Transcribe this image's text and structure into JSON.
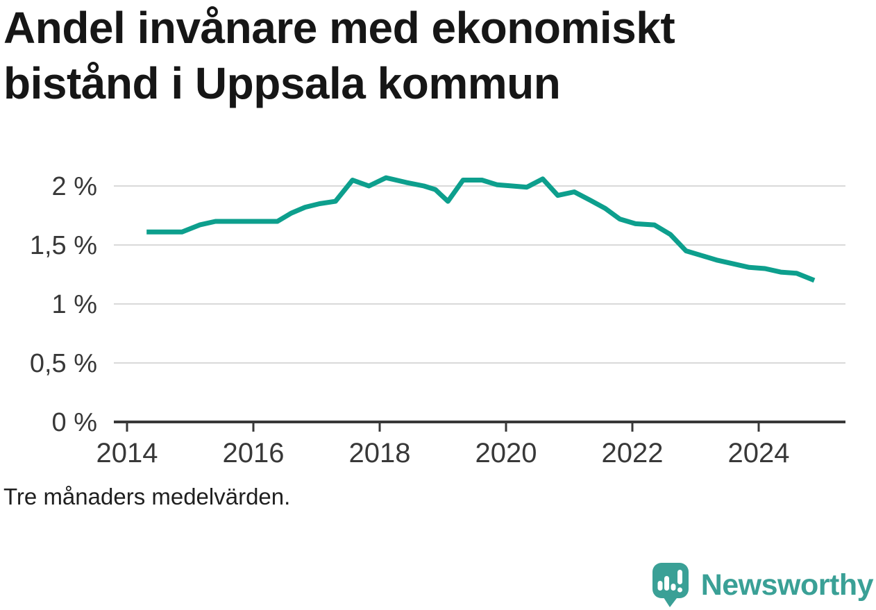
{
  "title": "Andel invånare med ekonomiskt bistånd i Uppsala kommun",
  "footnote": "Tre månaders medelvärden.",
  "branding": {
    "logo_text": "Newsworthy",
    "icon": "newsworthy-bubble-chart-icon",
    "color": "#3aa096"
  },
  "colors": {
    "line": "#0d9f8d",
    "grid": "#d9d9d9",
    "axis": "#383838",
    "text": "#161616"
  },
  "chart_data": {
    "type": "line",
    "title": "Andel invånare med ekonomiskt bistånd i Uppsala kommun",
    "note": "Tre månaders medelvärden.",
    "unit": "%",
    "grid": true,
    "legend": "none",
    "x": {
      "label": "",
      "tick_years": [
        2014,
        2016,
        2018,
        2020,
        2022,
        2024
      ],
      "range": [
        2013.8,
        2025.4
      ]
    },
    "y": {
      "label": "",
      "range": [
        0,
        2.2
      ],
      "ticks": [
        {
          "value": 2,
          "label": "2 %"
        },
        {
          "value": 1.5,
          "label": "1,5 %"
        },
        {
          "value": 1,
          "label": "1 %"
        },
        {
          "value": 0.5,
          "label": "0,5 %"
        },
        {
          "value": 0,
          "label": "0 %"
        }
      ]
    },
    "series": [
      {
        "name": "Andel invånare med ekonomiskt bistånd i Uppsala kommun",
        "color": "#0d9f8d",
        "points": [
          [
            2014.31,
            1.61
          ],
          [
            2014.6,
            1.61
          ],
          [
            2014.87,
            1.61
          ],
          [
            2015.15,
            1.67
          ],
          [
            2015.4,
            1.7
          ],
          [
            2015.65,
            1.7
          ],
          [
            2015.9,
            1.7
          ],
          [
            2016.15,
            1.7
          ],
          [
            2016.38,
            1.7
          ],
          [
            2016.6,
            1.77
          ],
          [
            2016.82,
            1.82
          ],
          [
            2017.05,
            1.85
          ],
          [
            2017.3,
            1.87
          ],
          [
            2017.57,
            2.05
          ],
          [
            2017.83,
            2.0
          ],
          [
            2018.1,
            2.07
          ],
          [
            2018.42,
            2.03
          ],
          [
            2018.7,
            2.0
          ],
          [
            2018.88,
            1.97
          ],
          [
            2019.08,
            1.87
          ],
          [
            2019.32,
            2.05
          ],
          [
            2019.62,
            2.05
          ],
          [
            2019.86,
            2.01
          ],
          [
            2020.1,
            2.0
          ],
          [
            2020.33,
            1.99
          ],
          [
            2020.58,
            2.06
          ],
          [
            2020.82,
            1.92
          ],
          [
            2021.08,
            1.95
          ],
          [
            2021.33,
            1.88
          ],
          [
            2021.57,
            1.81
          ],
          [
            2021.8,
            1.72
          ],
          [
            2022.05,
            1.68
          ],
          [
            2022.35,
            1.67
          ],
          [
            2022.6,
            1.59
          ],
          [
            2022.85,
            1.45
          ],
          [
            2023.1,
            1.41
          ],
          [
            2023.35,
            1.37
          ],
          [
            2023.6,
            1.34
          ],
          [
            2023.85,
            1.31
          ],
          [
            2024.1,
            1.3
          ],
          [
            2024.35,
            1.27
          ],
          [
            2024.6,
            1.26
          ],
          [
            2024.88,
            1.2
          ]
        ]
      }
    ]
  }
}
